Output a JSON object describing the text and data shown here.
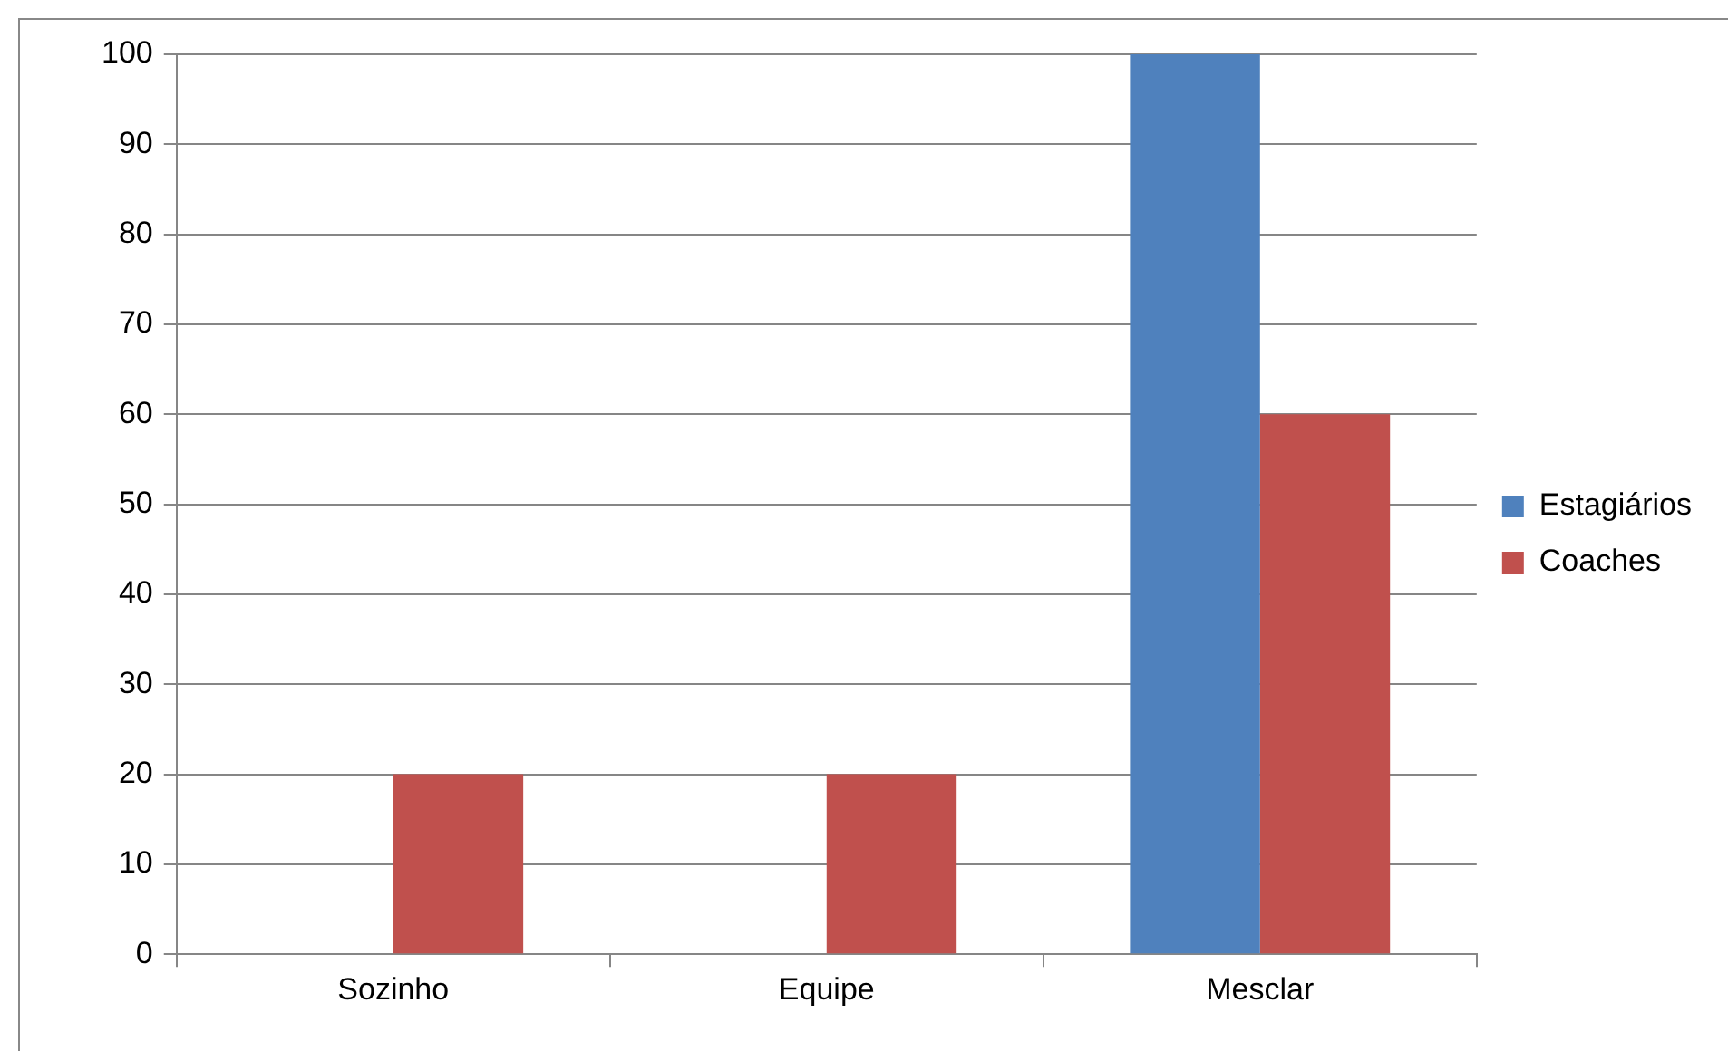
{
  "chart_data": {
    "type": "bar",
    "categories": [
      "Sozinho",
      "Equipe",
      "Mesclar"
    ],
    "series": [
      {
        "name": "Estagiários",
        "color": "#4f81bd",
        "values": [
          0,
          0,
          100
        ]
      },
      {
        "name": "Coaches",
        "color": "#c0504d",
        "values": [
          20,
          20,
          60
        ]
      }
    ],
    "ylim": [
      0,
      100
    ],
    "yticks": [
      0,
      10,
      20,
      30,
      40,
      50,
      60,
      70,
      80,
      90,
      100
    ],
    "grid": "y",
    "legend": "right"
  }
}
